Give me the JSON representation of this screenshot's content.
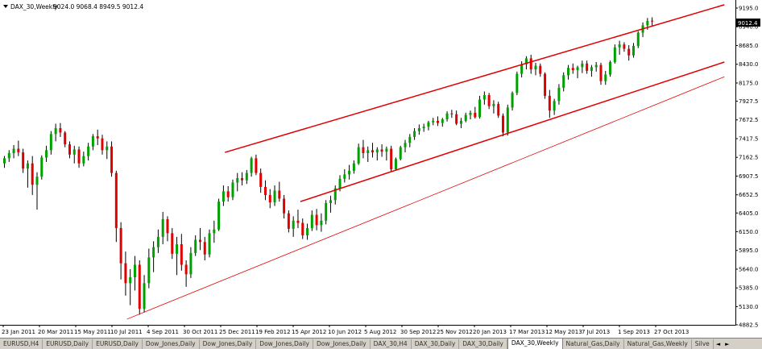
{
  "header": {
    "symbol": "DAX_30,Weekly",
    "ohlc": "9024.0 9068.4 8949.5 9012.4"
  },
  "tabs": [
    {
      "label": "EURUSD,H4"
    },
    {
      "label": "EURUSD,Daily"
    },
    {
      "label": "EURUSD,Daily"
    },
    {
      "label": "Dow_Jones,Daily"
    },
    {
      "label": "Dow_Jones,Daily"
    },
    {
      "label": "Dow_Jones,Daily"
    },
    {
      "label": "Dow_Jones,Daily"
    },
    {
      "label": "DAX_30,H4"
    },
    {
      "label": "DAX_30,Daily"
    },
    {
      "label": "DAX_30,Daily"
    },
    {
      "label": "DAX_30,Weekly",
      "active": true
    },
    {
      "label": "Natural_Gas,Daily"
    },
    {
      "label": "Natural_Gas,Weekly"
    },
    {
      "label": "Silve"
    }
  ],
  "tab_nav": {
    "prev": "◄",
    "next": "►"
  },
  "colors": {
    "bull": "#00a000",
    "bear": "#e00000",
    "wick": "#000000",
    "channel": "#e00000",
    "axis": "#000000"
  },
  "chart_data": {
    "type": "candlestick",
    "title": "DAX_30,Weekly",
    "current_price": "9012.4",
    "ylim": [
      4882.5,
      9195.0
    ],
    "y_ticks": [
      "9195.0",
      "8940.0",
      "8685.0",
      "8430.0",
      "8175.0",
      "7927.5",
      "7672.5",
      "7417.5",
      "7162.5",
      "6907.5",
      "6652.5",
      "6405.0",
      "6150.0",
      "5895.0",
      "5640.0",
      "5385.0",
      "5130.0",
      "4882.5"
    ],
    "x_ticks": [
      "23 Jan 2011",
      "20 Mar 2011",
      "15 May 2011",
      "10 Jul 2011",
      "4 Sep 2011",
      "30 Oct 2011",
      "25 Dec 2011",
      "19 Feb 2012",
      "15 Apr 2012",
      "10 Jun 2012",
      "5 Aug 2012",
      "30 Sep 2012",
      "25 Nov 2012",
      "20 Jan 2013",
      "17 Mar 2013",
      "12 May 2013",
      "7 Jul 2013",
      "1 Sep 2013",
      "27 Oct 2013"
    ],
    "channel_lines": [
      {
        "from": {
          "week": 47.3,
          "price": 7230
        },
        "to": {
          "week": 154.5,
          "price": 9240
        },
        "width": 1.5
      },
      {
        "from": {
          "week": 63.5,
          "price": 6560
        },
        "to": {
          "week": 154.5,
          "price": 8460
        },
        "width": 1.5
      },
      {
        "from": {
          "week": 26.3,
          "price": 4960
        },
        "to": {
          "week": 154.5,
          "price": 8260
        },
        "width": 0.8
      }
    ],
    "candles": [
      [
        7080,
        7180,
        7020,
        7150
      ],
      [
        7150,
        7260,
        7100,
        7220
      ],
      [
        7220,
        7330,
        7150,
        7280
      ],
      [
        7280,
        7390,
        7180,
        7230
      ],
      [
        7230,
        7280,
        6950,
        7010
      ],
      [
        7010,
        7120,
        6750,
        7080
      ],
      [
        7080,
        7180,
        6650,
        6790
      ],
      [
        6790,
        6960,
        6450,
        6900
      ],
      [
        6900,
        7190,
        6860,
        7160
      ],
      [
        7160,
        7320,
        7100,
        7260
      ],
      [
        7260,
        7520,
        7200,
        7480
      ],
      [
        7480,
        7620,
        7380,
        7560
      ],
      [
        7560,
        7630,
        7440,
        7500
      ],
      [
        7500,
        7520,
        7300,
        7340
      ],
      [
        7340,
        7380,
        7150,
        7200
      ],
      [
        7200,
        7320,
        7080,
        7270
      ],
      [
        7270,
        7310,
        7020,
        7080
      ],
      [
        7080,
        7240,
        7040,
        7180
      ],
      [
        7180,
        7360,
        7120,
        7310
      ],
      [
        7310,
        7480,
        7260,
        7450
      ],
      [
        7450,
        7540,
        7330,
        7420
      ],
      [
        7420,
        7470,
        7200,
        7260
      ],
      [
        7260,
        7380,
        7140,
        7310
      ],
      [
        7310,
        7380,
        6900,
        6950
      ],
      [
        6950,
        6980,
        6010,
        6200
      ],
      [
        6200,
        6280,
        5500,
        5720
      ],
      [
        5720,
        5880,
        5280,
        5450
      ],
      [
        5450,
        5640,
        5150,
        5530
      ],
      [
        5530,
        5820,
        5350,
        5700
      ],
      [
        5700,
        5760,
        5020,
        5100
      ],
      [
        5100,
        5560,
        5050,
        5450
      ],
      [
        5450,
        5920,
        5380,
        5800
      ],
      [
        5800,
        6020,
        5600,
        5940
      ],
      [
        5940,
        6180,
        5860,
        6080
      ],
      [
        6080,
        6420,
        5980,
        6320
      ],
      [
        6320,
        6360,
        6020,
        6130
      ],
      [
        6130,
        6200,
        5780,
        5850
      ],
      [
        5850,
        6080,
        5560,
        5980
      ],
      [
        5980,
        6120,
        5620,
        5700
      ],
      [
        5700,
        5760,
        5400,
        5570
      ],
      [
        5570,
        5940,
        5520,
        5860
      ],
      [
        5860,
        6100,
        5820,
        6040
      ],
      [
        6040,
        6200,
        5900,
        6010
      ],
      [
        6010,
        6080,
        5760,
        5840
      ],
      [
        5840,
        6180,
        5800,
        6130
      ],
      [
        6130,
        6300,
        6000,
        6180
      ],
      [
        6180,
        6600,
        6160,
        6560
      ],
      [
        6560,
        6780,
        6500,
        6700
      ],
      [
        6700,
        6770,
        6560,
        6620
      ],
      [
        6620,
        6860,
        6580,
        6820
      ],
      [
        6820,
        6950,
        6700,
        6880
      ],
      [
        6880,
        6960,
        6780,
        6850
      ],
      [
        6850,
        6990,
        6800,
        6950
      ],
      [
        6950,
        7170,
        6900,
        7150
      ],
      [
        7150,
        7200,
        6920,
        6950
      ],
      [
        6950,
        7010,
        6680,
        6760
      ],
      [
        6760,
        6850,
        6580,
        6650
      ],
      [
        6650,
        6730,
        6470,
        6550
      ],
      [
        6550,
        6780,
        6500,
        6710
      ],
      [
        6710,
        6830,
        6560,
        6600
      ],
      [
        6600,
        6650,
        6330,
        6400
      ],
      [
        6400,
        6440,
        6140,
        6190
      ],
      [
        6190,
        6360,
        6080,
        6300
      ],
      [
        6300,
        6450,
        6200,
        6270
      ],
      [
        6270,
        6330,
        6050,
        6100
      ],
      [
        6100,
        6260,
        6040,
        6200
      ],
      [
        6200,
        6440,
        6160,
        6380
      ],
      [
        6380,
        6460,
        6170,
        6240
      ],
      [
        6240,
        6400,
        6150,
        6300
      ],
      [
        6300,
        6580,
        6250,
        6540
      ],
      [
        6540,
        6640,
        6410,
        6580
      ],
      [
        6580,
        6780,
        6520,
        6740
      ],
      [
        6740,
        6920,
        6700,
        6870
      ],
      [
        6870,
        7000,
        6820,
        6930
      ],
      [
        6930,
        7060,
        6860,
        6980
      ],
      [
        6980,
        7120,
        6940,
        7080
      ],
      [
        7080,
        7350,
        7060,
        7300
      ],
      [
        7300,
        7400,
        7150,
        7220
      ],
      [
        7220,
        7310,
        7100,
        7260
      ],
      [
        7260,
        7360,
        7160,
        7230
      ],
      [
        7230,
        7300,
        7120,
        7270
      ],
      [
        7270,
        7340,
        7170,
        7240
      ],
      [
        7240,
        7310,
        7120,
        7280
      ],
      [
        7280,
        7320,
        6970,
        7000
      ],
      [
        7000,
        7160,
        6980,
        7140
      ],
      [
        7140,
        7320,
        7120,
        7300
      ],
      [
        7300,
        7400,
        7230,
        7360
      ],
      [
        7360,
        7480,
        7300,
        7440
      ],
      [
        7440,
        7560,
        7400,
        7520
      ],
      [
        7520,
        7610,
        7470,
        7560
      ],
      [
        7560,
        7620,
        7510,
        7580
      ],
      [
        7580,
        7660,
        7530,
        7640
      ],
      [
        7640,
        7700,
        7600,
        7660
      ],
      [
        7660,
        7720,
        7590,
        7630
      ],
      [
        7630,
        7700,
        7580,
        7680
      ],
      [
        7680,
        7790,
        7650,
        7760
      ],
      [
        7760,
        7810,
        7700,
        7750
      ],
      [
        7750,
        7800,
        7600,
        7620
      ],
      [
        7620,
        7700,
        7560,
        7660
      ],
      [
        7660,
        7770,
        7640,
        7740
      ],
      [
        7740,
        7800,
        7680,
        7770
      ],
      [
        7770,
        7850,
        7690,
        7710
      ],
      [
        7710,
        8000,
        7690,
        7950
      ],
      [
        7950,
        8060,
        7880,
        8010
      ],
      [
        8010,
        8040,
        7820,
        7860
      ],
      [
        7860,
        7940,
        7760,
        7890
      ],
      [
        7890,
        7920,
        7700,
        7730
      ],
      [
        7730,
        7760,
        7450,
        7500
      ],
      [
        7500,
        7880,
        7460,
        7840
      ],
      [
        7840,
        8060,
        7800,
        8040
      ],
      [
        8040,
        8330,
        8010,
        8300
      ],
      [
        8300,
        8470,
        8250,
        8430
      ],
      [
        8430,
        8540,
        8360,
        8510
      ],
      [
        8510,
        8560,
        8300,
        8360
      ],
      [
        8360,
        8450,
        8280,
        8410
      ],
      [
        8410,
        8440,
        8260,
        8300
      ],
      [
        8300,
        8320,
        7960,
        8000
      ],
      [
        8000,
        8080,
        7700,
        7800
      ],
      [
        7800,
        7960,
        7740,
        7930
      ],
      [
        7930,
        8160,
        7880,
        8110
      ],
      [
        8110,
        8320,
        8060,
        8280
      ],
      [
        8280,
        8420,
        8220,
        8380
      ],
      [
        8380,
        8440,
        8300,
        8350
      ],
      [
        8350,
        8410,
        8240,
        8390
      ],
      [
        8390,
        8480,
        8310,
        8440
      ],
      [
        8440,
        8480,
        8300,
        8340
      ],
      [
        8340,
        8420,
        8260,
        8390
      ],
      [
        8390,
        8460,
        8330,
        8420
      ],
      [
        8420,
        8450,
        8150,
        8200
      ],
      [
        8200,
        8340,
        8150,
        8290
      ],
      [
        8290,
        8480,
        8260,
        8460
      ],
      [
        8460,
        8700,
        8440,
        8660
      ],
      [
        8660,
        8750,
        8560,
        8700
      ],
      [
        8700,
        8730,
        8600,
        8640
      ],
      [
        8640,
        8690,
        8480,
        8550
      ],
      [
        8550,
        8720,
        8520,
        8680
      ],
      [
        8680,
        8880,
        8650,
        8860
      ],
      [
        8860,
        9000,
        8800,
        8960
      ],
      [
        8960,
        9060,
        8900,
        9020
      ],
      [
        9024.0,
        9068.4,
        8949.5,
        9012.4
      ]
    ]
  }
}
